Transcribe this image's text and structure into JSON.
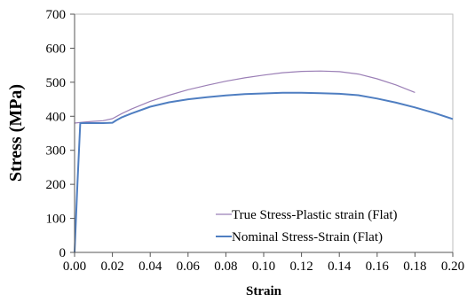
{
  "chart_data": {
    "type": "line",
    "xlabel": "Strain",
    "ylabel": "Stress  (MPa)",
    "xlim": [
      0,
      0.2
    ],
    "ylim": [
      0,
      700
    ],
    "xticks": [
      "0.00",
      "0.02",
      "0.04",
      "0.06",
      "0.08",
      "0.10",
      "0.12",
      "0.14",
      "0.16",
      "0.18",
      "0.20"
    ],
    "yticks": [
      "0",
      "100",
      "200",
      "300",
      "400",
      "500",
      "600",
      "700"
    ],
    "grid": false,
    "legend_position": "bottom-right",
    "series": [
      {
        "name": "True Stress-Plastic strain (Flat)",
        "color": "#9b7fb6",
        "x": [
          0,
          0.005,
          0.01,
          0.015,
          0.02,
          0.025,
          0.03,
          0.04,
          0.05,
          0.06,
          0.07,
          0.08,
          0.09,
          0.1,
          0.11,
          0.12,
          0.13,
          0.14,
          0.15,
          0.16,
          0.17,
          0.18
        ],
        "y": [
          380,
          383,
          385,
          387,
          393,
          408,
          421,
          444,
          462,
          478,
          491,
          503,
          513,
          521,
          528,
          532,
          533,
          531,
          524,
          510,
          492,
          470
        ]
      },
      {
        "name": "Nominal Stress-Strain (Flat)",
        "color": "#4f7ec1",
        "x": [
          0,
          0.0015,
          0.003,
          0.005,
          0.01,
          0.015,
          0.02,
          0.022,
          0.025,
          0.03,
          0.04,
          0.05,
          0.06,
          0.07,
          0.08,
          0.09,
          0.1,
          0.11,
          0.12,
          0.13,
          0.14,
          0.15,
          0.16,
          0.17,
          0.18,
          0.19,
          0.2
        ],
        "y": [
          0,
          200,
          380,
          380,
          380,
          380,
          381,
          388,
          397,
          408,
          428,
          441,
          450,
          456,
          461,
          465,
          467,
          469,
          469,
          468,
          466,
          462,
          452,
          440,
          426,
          410,
          392
        ]
      }
    ]
  }
}
